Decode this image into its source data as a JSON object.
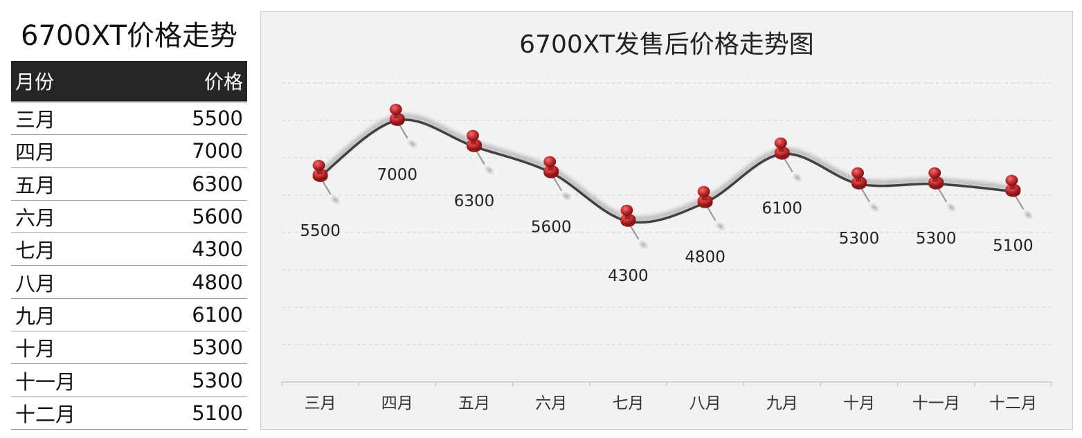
{
  "table": {
    "title": "6700XT价格走势",
    "header": {
      "month": "月份",
      "price": "价格"
    },
    "rows": [
      {
        "month": "三月",
        "price": "5500"
      },
      {
        "month": "四月",
        "price": "7000"
      },
      {
        "month": "五月",
        "price": "6300"
      },
      {
        "month": "六月",
        "price": "5600"
      },
      {
        "month": "七月",
        "price": "4300"
      },
      {
        "month": "八月",
        "price": "4800"
      },
      {
        "month": "九月",
        "price": "6100"
      },
      {
        "month": "十月",
        "price": "5300"
      },
      {
        "month": "十一月",
        "price": "5300"
      },
      {
        "month": "十二月",
        "price": "5100"
      }
    ]
  },
  "chart_data": {
    "type": "line",
    "title": "6700XT发售后价格走势图",
    "categories": [
      "三月",
      "四月",
      "五月",
      "六月",
      "七月",
      "八月",
      "九月",
      "十月",
      "十一月",
      "十二月"
    ],
    "series": [
      {
        "values": [
          5500,
          7000,
          6300,
          5600,
          4300,
          4800,
          6100,
          5300,
          5300,
          5100
        ]
      }
    ],
    "ylim": [
      0,
      8000
    ],
    "smooth": true,
    "grid": true,
    "data_labels": true,
    "marker": "pushpin",
    "colors": {
      "line": "#404040",
      "marker": "#c0282a",
      "plot_background": "#f2f2f2",
      "grid": "#d9d9d9"
    }
  }
}
